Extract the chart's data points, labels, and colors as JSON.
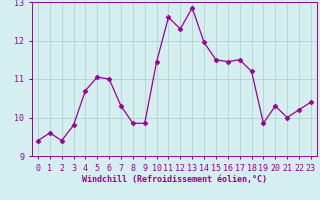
{
  "x": [
    0,
    1,
    2,
    3,
    4,
    5,
    6,
    7,
    8,
    9,
    10,
    11,
    12,
    13,
    14,
    15,
    16,
    17,
    18,
    19,
    20,
    21,
    22,
    23
  ],
  "y": [
    9.4,
    9.6,
    9.4,
    9.8,
    10.7,
    11.05,
    11.0,
    10.3,
    9.85,
    9.85,
    11.45,
    12.6,
    12.3,
    12.85,
    11.95,
    11.5,
    11.45,
    11.5,
    11.2,
    9.85,
    10.3,
    10.0,
    10.2,
    10.4
  ],
  "line_color": "#990099",
  "marker": "D",
  "marker_size": 2.5,
  "line_width": 0.9,
  "bg_color": "#d5eef0",
  "grid_color": "#aacccc",
  "axis_label_color": "#990099",
  "tick_color": "#990099",
  "xlabel": "Windchill (Refroidissement éolien,°C)",
  "ylim": [
    9.0,
    13.0
  ],
  "xlim": [
    -0.5,
    23.5
  ],
  "yticks": [
    9,
    10,
    11,
    12,
    13
  ],
  "xticks": [
    0,
    1,
    2,
    3,
    4,
    5,
    6,
    7,
    8,
    9,
    10,
    11,
    12,
    13,
    14,
    15,
    16,
    17,
    18,
    19,
    20,
    21,
    22,
    23
  ],
  "font_size_label": 6.0,
  "font_size_tick": 6.0
}
